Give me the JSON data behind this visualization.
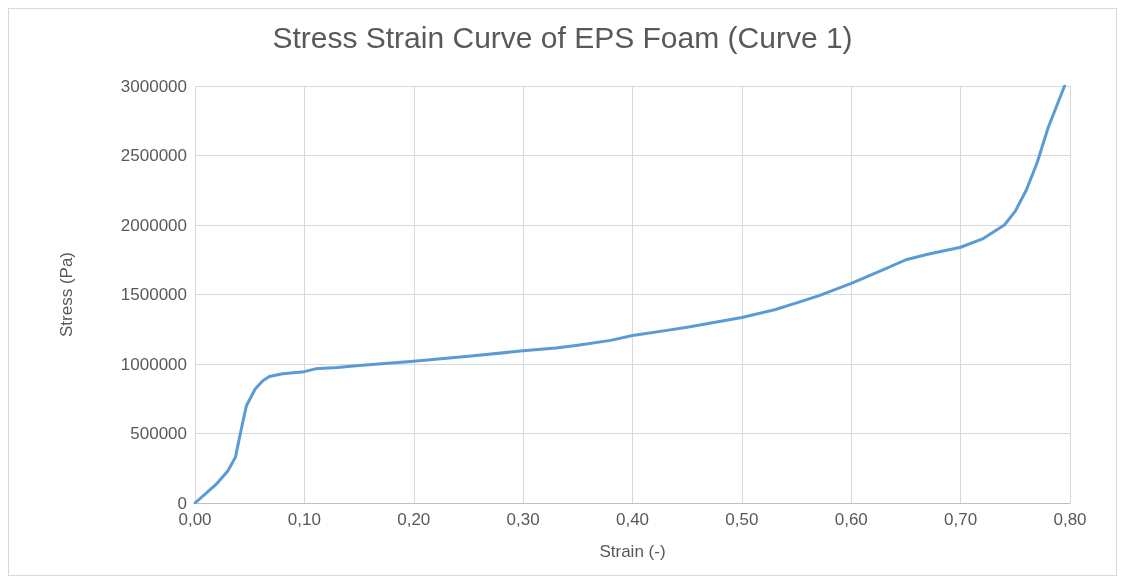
{
  "chart_data": {
    "type": "line",
    "title": "Stress Strain Curve of EPS Foam (Curve 1)",
    "xlabel": "Strain (-)",
    "ylabel": "Stress (Pa)",
    "series": [
      {
        "color": "#5b9bd5",
        "x": [
          0,
          0.01,
          0.02,
          0.03,
          0.037,
          0.042,
          0.047,
          0.055,
          0.062,
          0.068,
          0.08,
          0.1,
          0.11,
          0.13,
          0.15,
          0.2,
          0.25,
          0.3,
          0.33,
          0.35,
          0.38,
          0.4,
          0.43,
          0.45,
          0.5,
          0.53,
          0.55,
          0.57,
          0.6,
          0.63,
          0.65,
          0.67,
          0.7,
          0.72,
          0.74,
          0.75,
          0.76,
          0.77,
          0.78,
          0.795
        ],
        "values": [
          0,
          70000,
          140000,
          230000,
          330000,
          520000,
          700000,
          820000,
          880000,
          910000,
          930000,
          945000,
          965000,
          975000,
          990000,
          1020000,
          1055000,
          1095000,
          1115000,
          1135000,
          1170000,
          1205000,
          1240000,
          1265000,
          1335000,
          1390000,
          1440000,
          1490000,
          1580000,
          1680000,
          1750000,
          1790000,
          1840000,
          1900000,
          2000000,
          2100000,
          2250000,
          2450000,
          2700000,
          3000000
        ]
      }
    ],
    "xlim": [
      0,
      0.8
    ],
    "xticks": [
      {
        "value": 0,
        "label": "0,00"
      },
      {
        "value": 0.1,
        "label": "0,10"
      },
      {
        "value": 0.2,
        "label": "0,20"
      },
      {
        "value": 0.3,
        "label": "0,30"
      },
      {
        "value": 0.4,
        "label": "0,40"
      },
      {
        "value": 0.5,
        "label": "0,50"
      },
      {
        "value": 0.6,
        "label": "0,60"
      },
      {
        "value": 0.7,
        "label": "0,70"
      },
      {
        "value": 0.8,
        "label": "0,80"
      }
    ],
    "ylim": [
      0,
      3000000
    ],
    "yticks": [
      0,
      500000,
      1000000,
      1500000,
      2000000,
      2500000,
      3000000
    ],
    "grid": true,
    "marker": "none",
    "line_style": "solid"
  }
}
